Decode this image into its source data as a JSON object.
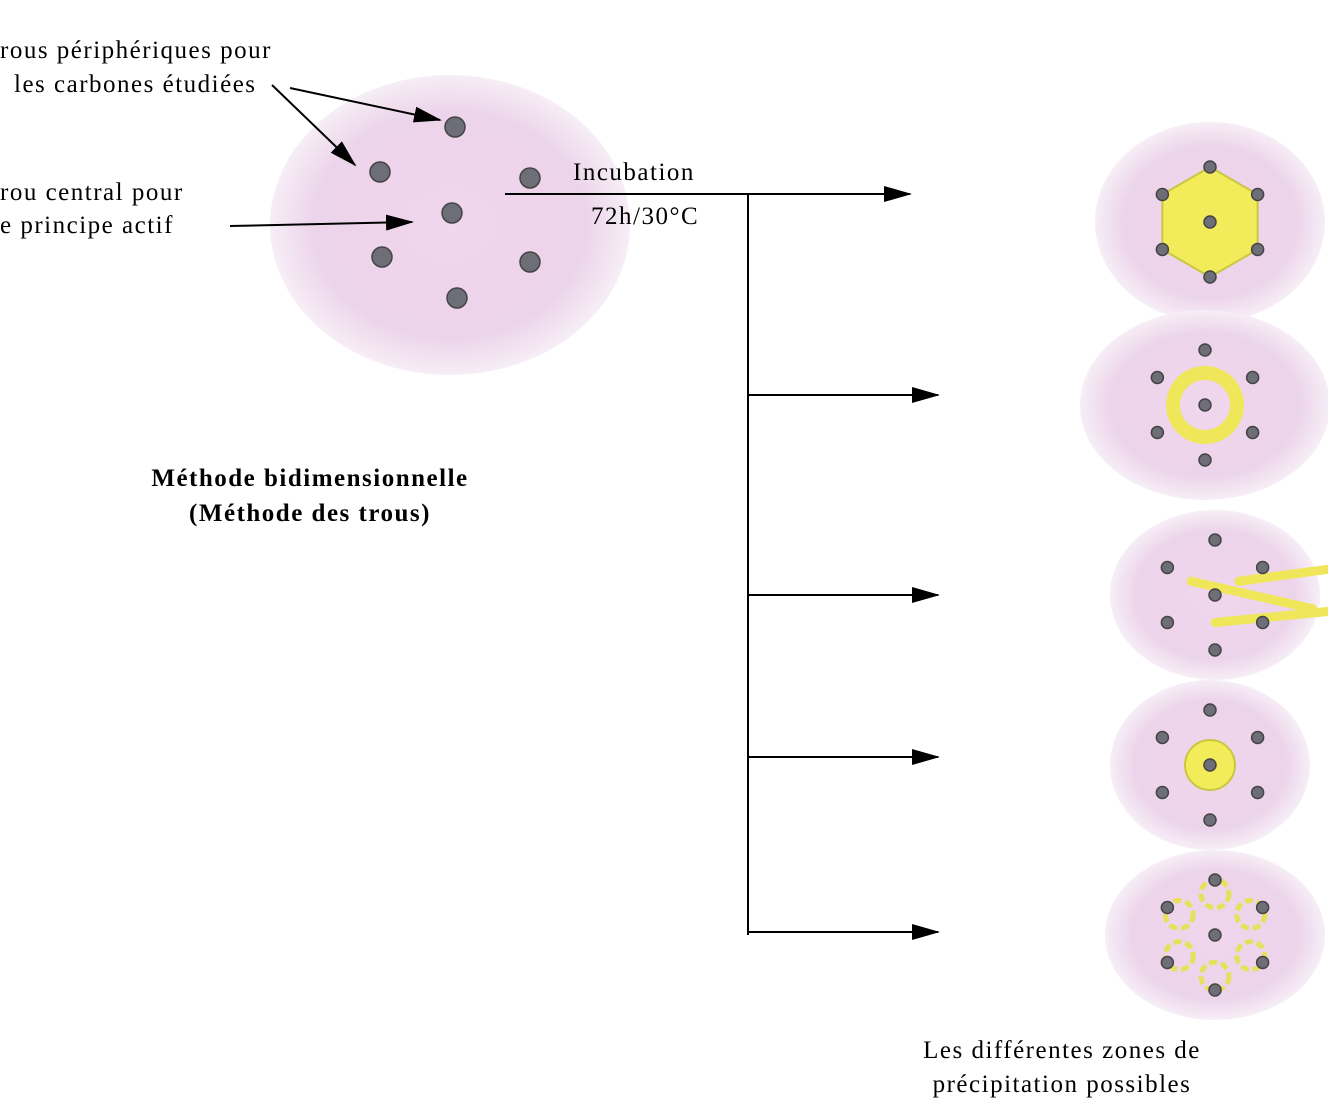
{
  "labels": {
    "peripheral": [
      "rous périphériques pour",
      "les carbones étudiées"
    ],
    "central": [
      "rou central pour",
      "e principe actif"
    ],
    "incubation": [
      "Incubation",
      "72h/30°C"
    ]
  },
  "method": {
    "title": "Méthode bidimensionnelle",
    "subtitle": "(Méthode des trous)"
  },
  "results": {
    "caption": [
      "Les différentes zones de",
      "précipitation possibles"
    ]
  }
}
